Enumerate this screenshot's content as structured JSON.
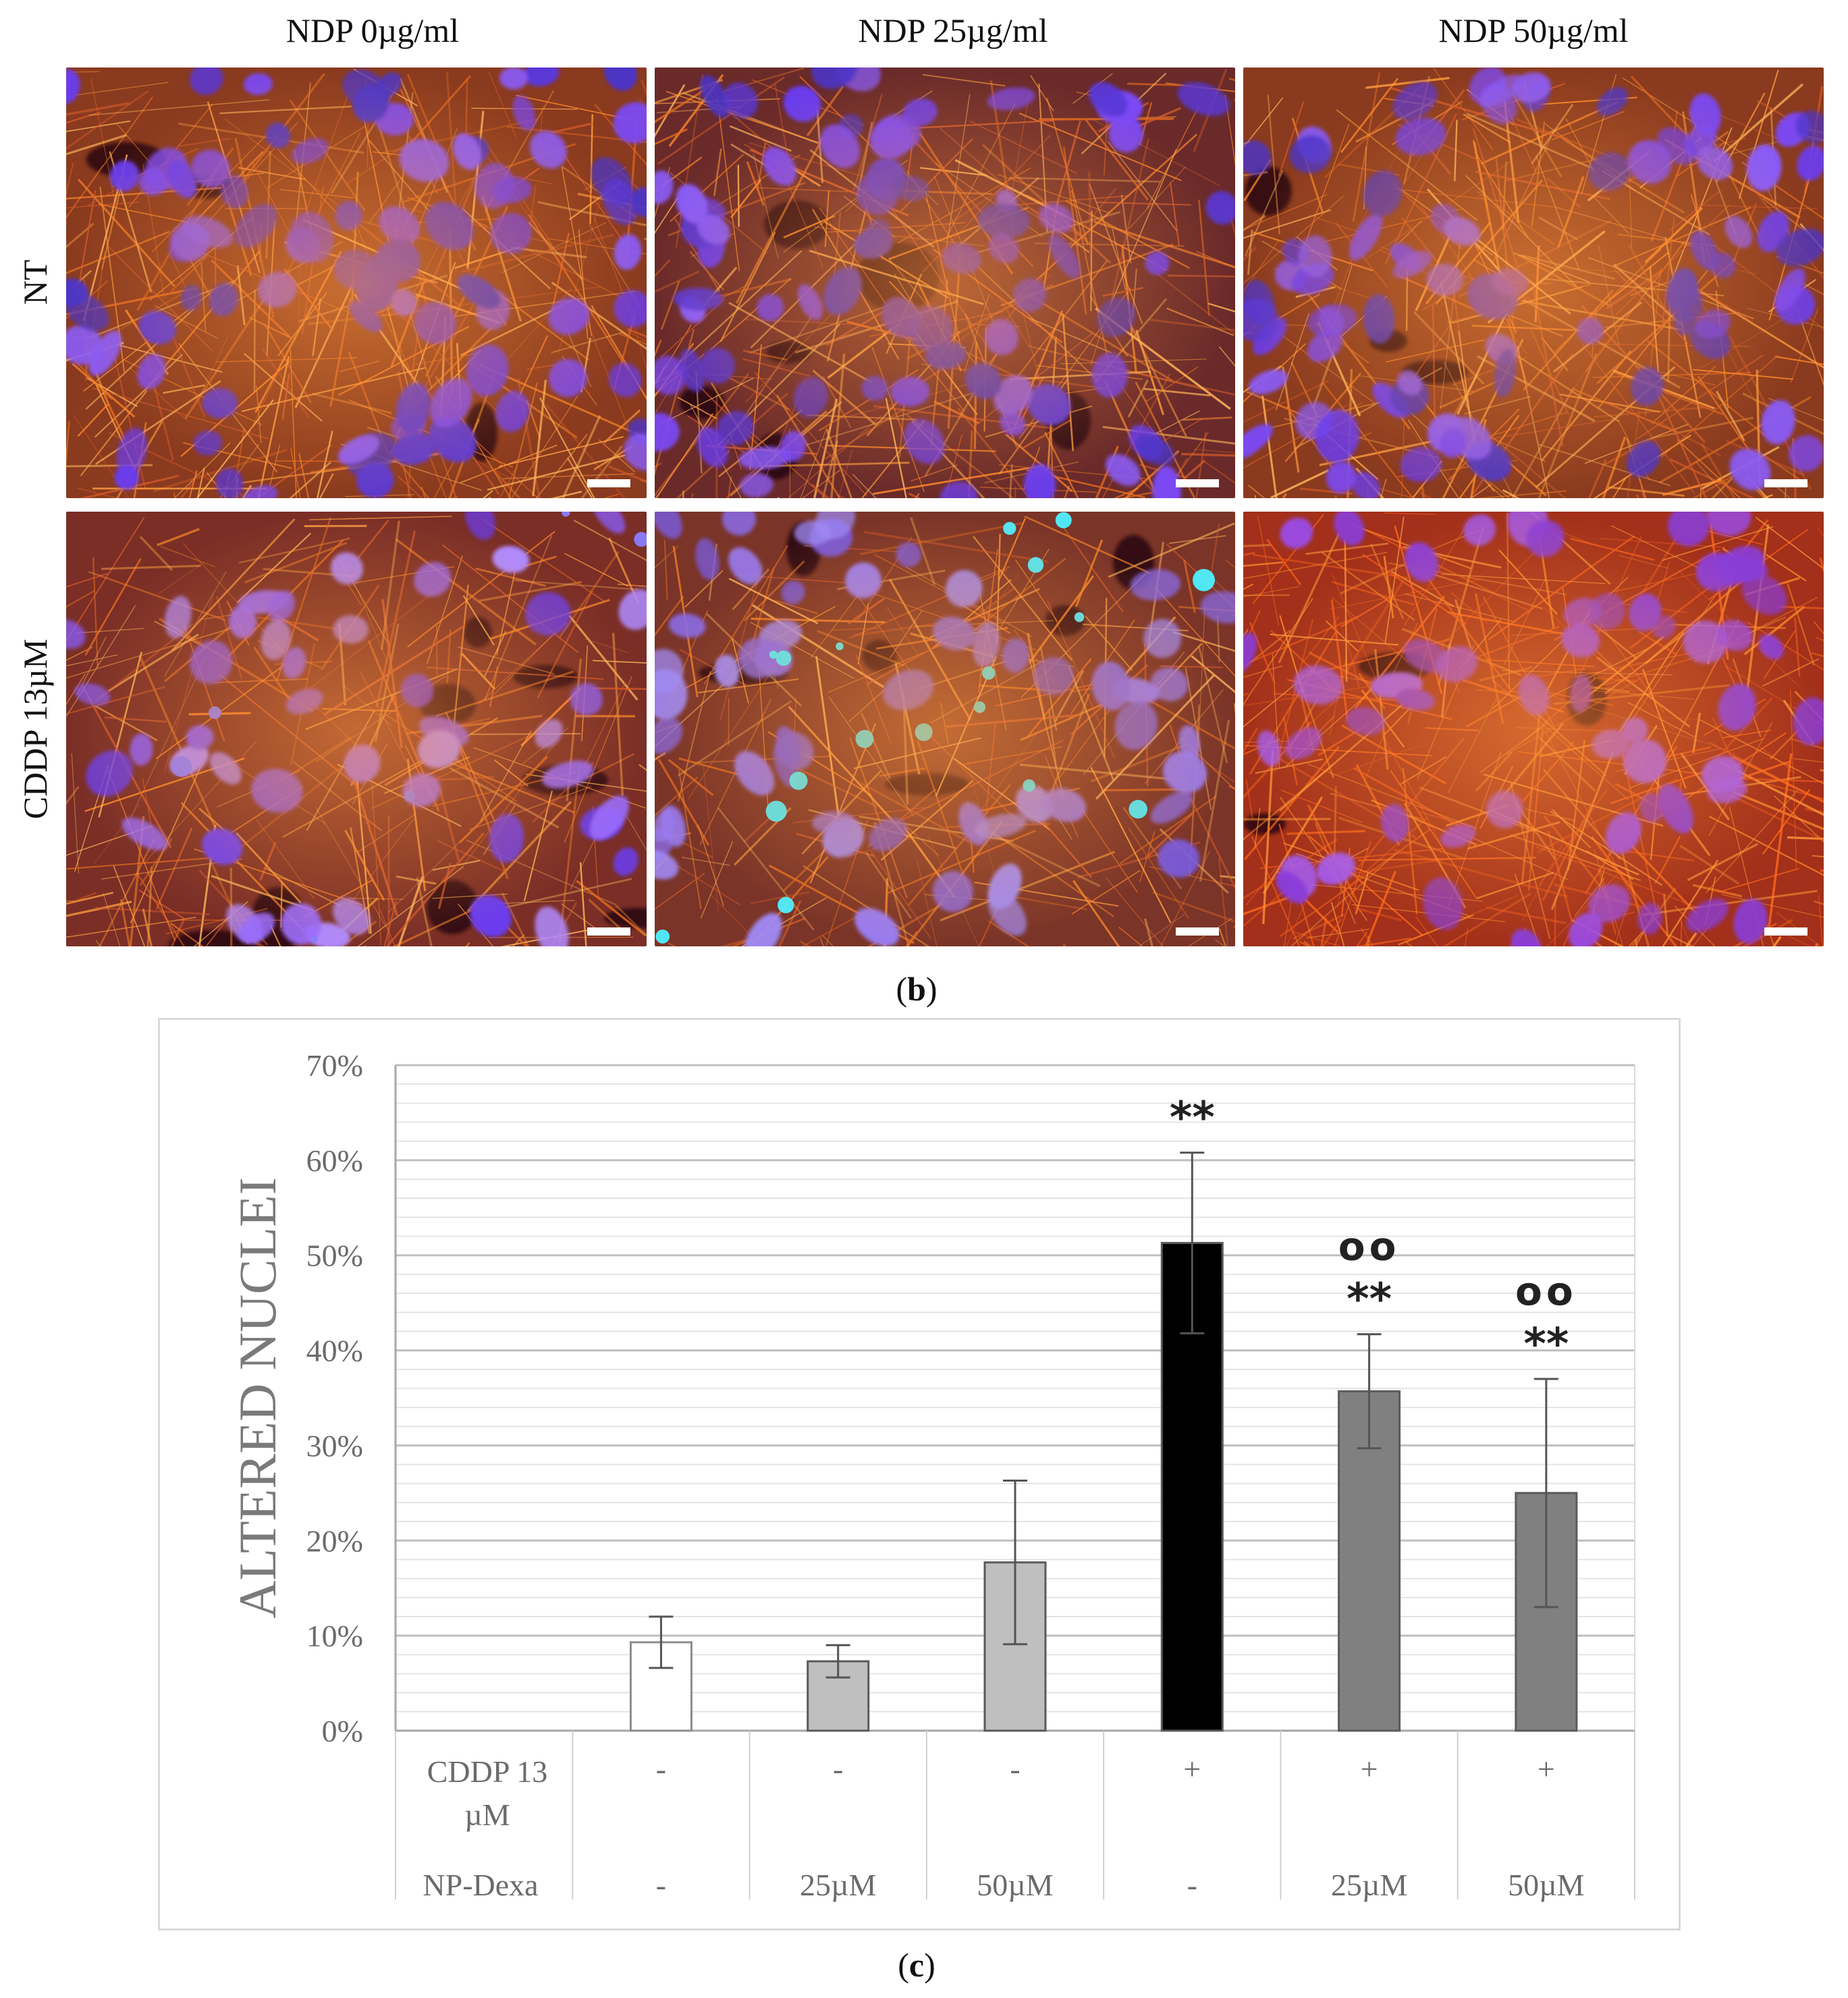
{
  "micrographs": {
    "columns": [
      "NDP 0µg/ml",
      "NDP 25µg/ml",
      "NDP 50µg/ml"
    ],
    "rows": [
      "NT",
      "CDDP 13µM"
    ]
  },
  "labels": {
    "panel_b_open": "(",
    "panel_b_letter": "b",
    "panel_b_close": ")",
    "panel_c_open": "(",
    "panel_c_letter": "c",
    "panel_c_close": ")"
  },
  "chart_data": {
    "type": "bar",
    "title": "",
    "ylabel": "ALTERED NUCLEI",
    "ylim": [
      0,
      70
    ],
    "yticks": [
      "0%",
      "10%",
      "20%",
      "30%",
      "40%",
      "50%",
      "60%",
      "70%"
    ],
    "grid": true,
    "categories": [
      "",
      "-/-",
      "-/25µM",
      "-/50µM",
      "+/-",
      "+/25µM",
      "+/50µM"
    ],
    "values": [
      null,
      9.3,
      7.3,
      17.7,
      51.3,
      35.7,
      25.0
    ],
    "errors": [
      null,
      2.7,
      1.7,
      8.6,
      9.5,
      6.0,
      12.0
    ],
    "annotations_top": [
      "",
      "",
      "",
      "",
      "**",
      "**",
      "**"
    ],
    "annotations_upper": [
      "",
      "",
      "",
      "",
      "",
      "oo",
      "oo"
    ],
    "bar_colors": [
      "",
      "#ffffff",
      "#bfbfbf",
      "#bfbfbf",
      "#000000",
      "#808080",
      "#808080"
    ],
    "table": {
      "row1_label_line1": "CDDP 13",
      "row1_label_line2": "µM",
      "row1_values": [
        "-",
        "-",
        "-",
        "+",
        "+",
        "+"
      ],
      "row2_label": "NP-Dexa",
      "row2_values": [
        "-",
        "25µM",
        "50µM",
        "-",
        "25µM",
        "50µM"
      ]
    }
  }
}
